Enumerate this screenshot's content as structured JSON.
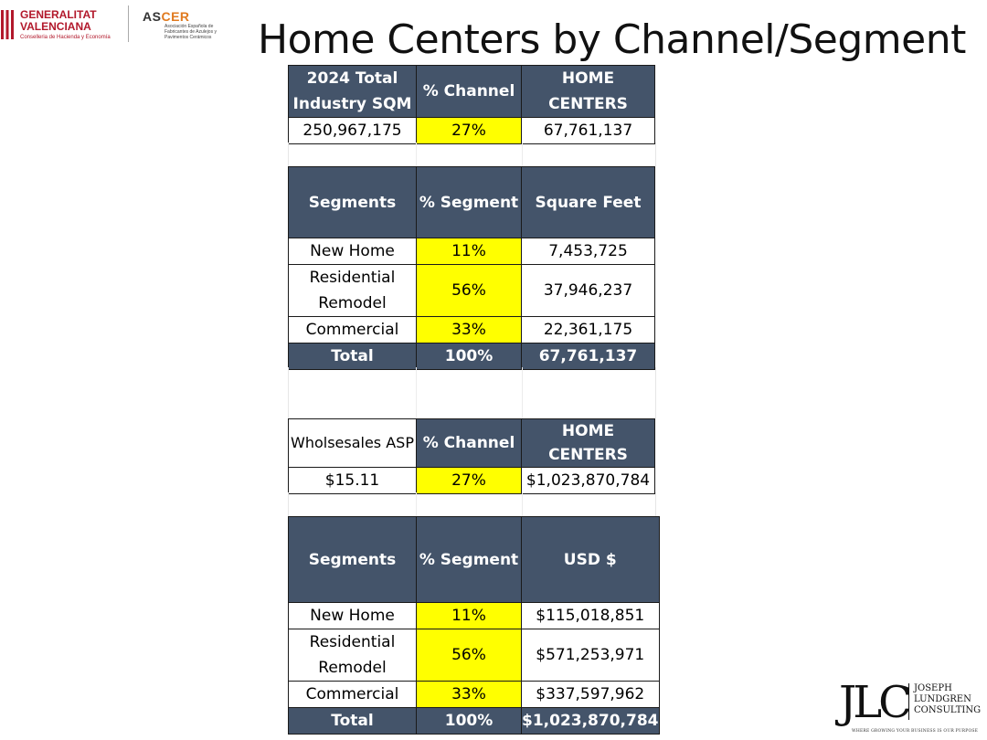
{
  "page_title": "Home Centers by Channel/Segment",
  "logos": {
    "generalitat": {
      "name_line1": "GENERALITAT",
      "name_line2": "VALENCIANA",
      "subtitle": "Conselleria de Hacienda y Economía"
    },
    "ascer": {
      "name_prefix": "AS",
      "name_accent": "CER",
      "subtitle": "Asociación Española de Fabricantes de Azulejos y Pavimentos Cerámicos"
    },
    "jlc": {
      "mark": "JLC",
      "line1": "JOSEPH",
      "line2": "LUNDGREN",
      "line3": "CONSULTING",
      "tagline": "WHERE GROWING YOUR BUSINESS IS OUR PURPOSE"
    }
  },
  "sqm_channel": {
    "headers": [
      "2024 Total Industry SQM",
      "% Channel",
      "HOME CENTERS"
    ],
    "row": [
      "250,967,175",
      "27%",
      "67,761,137"
    ]
  },
  "sqft_segments": {
    "headers": [
      "Segments",
      "% Segment",
      "Square Feet"
    ],
    "rows": [
      [
        "New Home",
        "11%",
        "7,453,725"
      ],
      [
        "Residential Remodel",
        "56%",
        "37,946,237"
      ],
      [
        "Commercial",
        "33%",
        "22,361,175"
      ]
    ],
    "total": [
      "Total",
      "100%",
      "67,761,137"
    ]
  },
  "asp_channel": {
    "headers": [
      "Wholsesales ASP",
      "% Channel",
      "HOME CENTERS"
    ],
    "row": [
      "$15.11",
      "27%",
      "$1,023,870,784"
    ]
  },
  "usd_segments": {
    "headers": [
      "Segments",
      "% Segment",
      "USD $"
    ],
    "rows": [
      [
        "New Home",
        "11%",
        "$115,018,851"
      ],
      [
        "Residential Remodel",
        "56%",
        "$571,253,971"
      ],
      [
        "Commercial",
        "33%",
        "$337,597,962"
      ]
    ],
    "total": [
      "Total",
      "100%",
      "$1,023,870,784"
    ]
  },
  "colors": {
    "header_fill": "#44546a",
    "highlight": "#ffff00",
    "generalitat_red": "#b2182b",
    "ascer_orange": "#e07a1f"
  }
}
